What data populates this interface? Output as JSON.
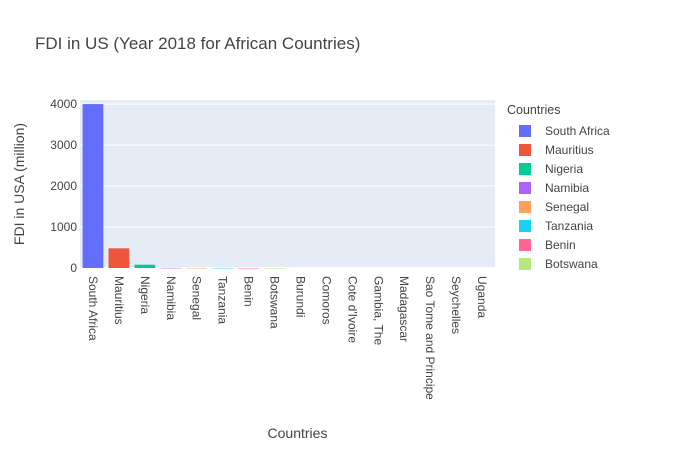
{
  "chart_data": {
    "type": "bar",
    "title": "FDI in US (Year 2018 for African Countries)",
    "xlabel": "Countries",
    "ylabel": "FDI in USA (million)",
    "ylim": [
      0,
      4100
    ],
    "yticks": [
      0,
      1000,
      2000,
      3000,
      4000
    ],
    "yticklabels": [
      "0",
      "1000",
      "2000",
      "3000",
      "4000"
    ],
    "grid": true,
    "legend_title": "Countries",
    "legend_position": "right",
    "categories": [
      "South Africa",
      "Mauritius",
      "Nigeria",
      "Namibia",
      "Senegal",
      "Tanzania",
      "Benin",
      "Botswana",
      "Burundi",
      "Comoros",
      "Cote d'Ivoire",
      "Gambia, The",
      "Madagascar",
      "Sao Tome and Principe",
      "Seychelles",
      "Uganda"
    ],
    "values": [
      4000,
      480,
      80,
      3,
      2,
      2,
      1,
      1,
      0,
      0,
      0,
      0,
      0,
      0,
      0,
      0
    ],
    "colors": [
      "#636efa",
      "#EF553B",
      "#00cc96",
      "#ab63fa",
      "#FFA15A",
      "#19d3f3",
      "#FF6692",
      "#B6E880",
      "#FF97FF",
      "#FECB52",
      "#636efa",
      "#EF553B",
      "#00cc96",
      "#ab63fa",
      "#FFA15A",
      "#19d3f3"
    ],
    "legend_visible_count": 8
  }
}
